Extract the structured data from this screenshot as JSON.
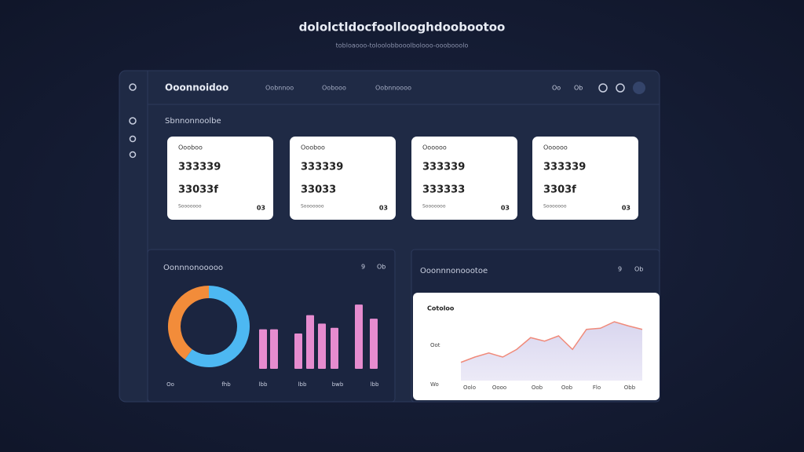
{
  "header": {
    "title": "dololctldocfoollooghdoobootoo",
    "subtitle": "tobloaooo-toloolobbooolbolooo-ooobooolo"
  },
  "app": {
    "brand": "Ooonnoidoo",
    "nav": [
      "Oobnnoo",
      "Oobooo",
      "Oobnnoooo"
    ],
    "top_icons": [
      "Oo",
      "Ob"
    ]
  },
  "section_title": "Sbnnonnoolbe",
  "cards": [
    {
      "label": "Oooboo",
      "value": "333339",
      "change": "33033f",
      "footer": "Sooooooo",
      "badge": "03"
    },
    {
      "label": "Oooboo",
      "value": "333339",
      "change": "33033",
      "footer": "Sooooooo",
      "badge": "03"
    },
    {
      "label": "Oooooo",
      "value": "333339",
      "change": "333333",
      "footer": "Sooooooo",
      "badge": "03"
    },
    {
      "label": "Oooooo",
      "value": "333339",
      "change": "3303f",
      "footer": "Sooooooo",
      "badge": "03"
    }
  ],
  "panels": [
    {
      "title": "Oonnnonooooo",
      "icons": [
        "9",
        "Ob"
      ],
      "x_labels": [
        "Oo",
        "fhb",
        "lbb",
        "lbb",
        "bwb",
        "lbb"
      ],
      "chart_data": [
        {
          "type": "pie",
          "values": [
            40,
            60
          ],
          "colors": [
            "#f28c3a",
            "#4db8f2"
          ]
        },
        {
          "type": "bar",
          "categories": [
            null,
            null,
            null,
            null,
            null,
            null,
            null,
            null
          ],
          "values": [
            56,
            56,
            50,
            76,
            64,
            58,
            91,
            71
          ],
          "color": "#e68ccf",
          "ylim": [
            0,
            100
          ]
        }
      ]
    },
    {
      "title": "Ooonnnonoootoe",
      "icons": [
        "9",
        "Ob"
      ],
      "card_label": "Cotoloo",
      "y_labels": [
        "Oot",
        "Wo"
      ],
      "x_labels": [
        "Oolo",
        "Oooo",
        "Oob",
        "Oob",
        "Flo",
        "Obb"
      ],
      "chart_data": {
        "type": "area",
        "values": [
          31,
          40,
          47,
          40,
          53,
          73,
          67,
          76,
          53,
          87,
          89,
          100,
          93,
          87
        ],
        "color": "#f08a7a",
        "ylim": [
          0,
          100
        ]
      }
    }
  ]
}
